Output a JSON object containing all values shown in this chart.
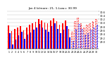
{
  "title": "Jan 4 b/more: 21, 1-Low= 30.99",
  "title_fontsize": 3.2,
  "bar_width": 0.38,
  "categories": [
    "1",
    "2",
    "3",
    "4",
    "5",
    "6",
    "7",
    "8",
    "9",
    "10",
    "11",
    "12",
    "13",
    "14",
    "15",
    "16",
    "17",
    "18",
    "19",
    "20",
    "21",
    "22",
    "23",
    "24",
    "25",
    "26",
    "27",
    "28",
    "29",
    "30"
  ],
  "highs": [
    29.85,
    29.55,
    29.65,
    29.72,
    29.8,
    29.6,
    29.75,
    29.88,
    29.95,
    30.05,
    30.18,
    30.1,
    30.0,
    29.95,
    30.1,
    30.22,
    30.08,
    29.88,
    29.98,
    30.1,
    29.68,
    29.52,
    30.08,
    30.28,
    29.98,
    29.75,
    29.88,
    29.98,
    30.08,
    30.18
  ],
  "lows": [
    29.45,
    28.82,
    29.1,
    29.32,
    29.52,
    29.12,
    29.35,
    29.48,
    29.62,
    29.75,
    29.92,
    29.72,
    29.62,
    29.52,
    29.82,
    29.95,
    29.65,
    29.42,
    29.62,
    29.82,
    29.22,
    29.02,
    29.65,
    29.92,
    29.65,
    29.35,
    29.45,
    29.62,
    29.75,
    29.88
  ],
  "high_color": "#ff0000",
  "low_color": "#0000ff",
  "bg_color": "#ffffff",
  "ylim": [
    28.6,
    30.7
  ],
  "yticks": [
    29.0,
    29.2,
    29.4,
    29.6,
    29.8,
    30.0,
    30.2,
    30.4,
    30.6
  ],
  "grid_color": "#c0c0c0",
  "tick_fontsize": 2.5,
  "x_tick_fontsize": 2.3,
  "dashed_bar_indices": [
    21,
    22,
    23,
    24,
    25,
    26,
    27,
    28,
    29
  ]
}
